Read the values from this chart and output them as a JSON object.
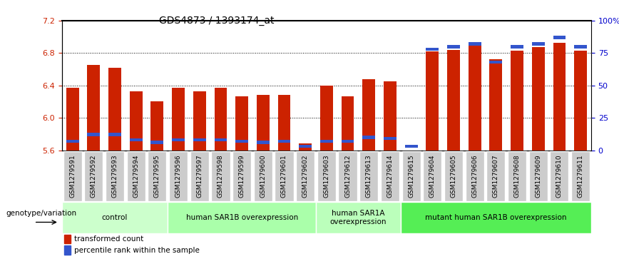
{
  "title": "GDS4873 / 1393174_at",
  "samples": [
    "GSM1279591",
    "GSM1279592",
    "GSM1279593",
    "GSM1279594",
    "GSM1279595",
    "GSM1279596",
    "GSM1279597",
    "GSM1279598",
    "GSM1279599",
    "GSM1279600",
    "GSM1279601",
    "GSM1279602",
    "GSM1279603",
    "GSM1279612",
    "GSM1279613",
    "GSM1279614",
    "GSM1279615",
    "GSM1279604",
    "GSM1279605",
    "GSM1279606",
    "GSM1279607",
    "GSM1279608",
    "GSM1279609",
    "GSM1279610",
    "GSM1279611"
  ],
  "transformed_count": [
    6.37,
    6.65,
    6.62,
    6.33,
    6.2,
    6.37,
    6.33,
    6.37,
    6.27,
    6.28,
    6.28,
    5.68,
    6.4,
    6.27,
    6.48,
    6.45,
    5.57,
    6.82,
    6.84,
    6.9,
    6.72,
    6.83,
    6.87,
    6.93,
    6.83
  ],
  "percentile_rank": [
    7,
    12,
    12,
    8,
    6,
    8,
    8,
    8,
    7,
    6,
    7,
    3,
    7,
    7,
    10,
    9,
    3,
    78,
    80,
    82,
    68,
    80,
    82,
    87,
    80
  ],
  "ymin": 5.6,
  "ymax": 7.2,
  "yticks": [
    5.6,
    6.0,
    6.4,
    6.8,
    7.2
  ],
  "right_yticks": [
    0,
    25,
    50,
    75,
    100
  ],
  "right_yticklabels": [
    "0",
    "25",
    "50",
    "75",
    "100%"
  ],
  "bar_color": "#cc2200",
  "blue_color": "#3355cc",
  "groups": [
    {
      "label": "control",
      "start": 0,
      "end": 4,
      "color": "#ccffcc"
    },
    {
      "label": "human SAR1B overexpression",
      "start": 5,
      "end": 11,
      "color": "#aaffaa"
    },
    {
      "label": "human SAR1A\noverexpression",
      "start": 12,
      "end": 15,
      "color": "#bbffbb"
    },
    {
      "label": "mutant human SAR1B overexpression",
      "start": 16,
      "end": 24,
      "color": "#55ee55"
    }
  ],
  "xlabel_fontsize": 6.5,
  "ylabel_color_left": "#cc2200",
  "ylabel_color_right": "#0000cc",
  "bg_color": "#ffffff",
  "tick_bg": "#cccccc"
}
